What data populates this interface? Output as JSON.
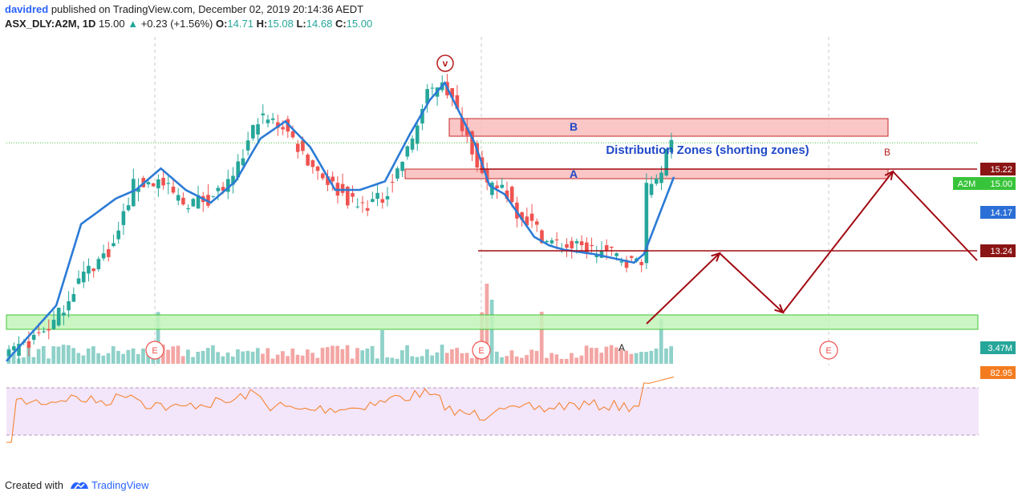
{
  "header": {
    "author": "davidred",
    "published_text": "published on TradingView.com, December 02, 2019 20:14:36 AEDT",
    "symbol": "ASX_DLY:A2M, 1D",
    "last": "15.00",
    "change_arrow": "▲",
    "change": "+0.23 (+1.56%)",
    "open_label": "O:",
    "open": "14.71",
    "high_label": "H:",
    "high": "15.08",
    "low_label": "L:",
    "low": "14.68",
    "close_label": "C:",
    "close": "15.00"
  },
  "footer": {
    "created_with": "Created with",
    "brand": "TradingView"
  },
  "colors": {
    "up": "#26a69a",
    "down": "#ef5350",
    "ma": "#2c7bd6",
    "supply_fill": "#f9bcbc",
    "supply_border": "#c62828",
    "demand_fill": "#c2f5b8",
    "demand_border": "#43c43a",
    "projection": "#a10b12",
    "rsi_line": "#f47c20",
    "rsi_band": "#f3e5fa",
    "label_text": "#2962ff",
    "marker": "#b71c1c"
  },
  "chart_data": {
    "type": "candlestick",
    "symbol": "ASX_DLY:A2M",
    "interval": "1D",
    "ohlc_last": {
      "open": 14.71,
      "high": 15.08,
      "low": 14.68,
      "close": 15.0,
      "change": 0.23,
      "change_pct": 1.56
    },
    "y_range": [
      9.8,
      17.4
    ],
    "price_path": [
      [
        0,
        9.9
      ],
      [
        10,
        10.8
      ],
      [
        15,
        11.8
      ],
      [
        22,
        12.6
      ],
      [
        26,
        14.0
      ],
      [
        31,
        14.1
      ],
      [
        36,
        13.6
      ],
      [
        41,
        13.7
      ],
      [
        46,
        14.1
      ],
      [
        51,
        15.6
      ],
      [
        56,
        15.4
      ],
      [
        61,
        14.6
      ],
      [
        66,
        14.0
      ],
      [
        71,
        13.5
      ],
      [
        76,
        13.7
      ],
      [
        81,
        14.8
      ],
      [
        85,
        16.1
      ],
      [
        88,
        16.5
      ],
      [
        91,
        15.7
      ],
      [
        94,
        14.9
      ],
      [
        97,
        13.9
      ],
      [
        100,
        14.0
      ],
      [
        103,
        13.4
      ],
      [
        106,
        13.1
      ],
      [
        109,
        12.7
      ],
      [
        112,
        12.6
      ],
      [
        118,
        12.5
      ],
      [
        122,
        12.4
      ],
      [
        126,
        12.2
      ],
      [
        128,
        12.3
      ],
      [
        129,
        13.9
      ],
      [
        132,
        14.4
      ],
      [
        134,
        15.0
      ]
    ],
    "moving_average_path": [
      [
        0,
        9.9
      ],
      [
        10,
        11.2
      ],
      [
        15,
        13.1
      ],
      [
        22,
        13.7
      ],
      [
        26,
        13.9
      ],
      [
        31,
        14.4
      ],
      [
        36,
        13.9
      ],
      [
        41,
        13.6
      ],
      [
        46,
        14.1
      ],
      [
        51,
        15.1
      ],
      [
        56,
        15.5
      ],
      [
        61,
        14.9
      ],
      [
        66,
        13.9
      ],
      [
        71,
        13.9
      ],
      [
        76,
        14.1
      ],
      [
        81,
        15.2
      ],
      [
        85,
        16.0
      ],
      [
        88,
        16.4
      ],
      [
        91,
        15.7
      ],
      [
        94,
        15.0
      ],
      [
        97,
        14.0
      ],
      [
        100,
        13.8
      ],
      [
        103,
        13.3
      ],
      [
        106,
        12.8
      ],
      [
        109,
        12.6
      ],
      [
        112,
        12.5
      ],
      [
        118,
        12.4
      ],
      [
        122,
        12.3
      ],
      [
        126,
        12.2
      ],
      [
        128,
        12.4
      ],
      [
        132,
        13.6
      ],
      [
        134,
        14.2
      ]
    ],
    "price_labels": [
      {
        "value": 15.22,
        "text": "15.22",
        "kind": "level"
      },
      {
        "value": 15.0,
        "text": "15.00",
        "kind": "last",
        "tag": "A2M"
      },
      {
        "value": 14.17,
        "text": "14.17",
        "kind": "ma"
      },
      {
        "value": 13.24,
        "text": "13.24",
        "kind": "level"
      }
    ],
    "zones": [
      {
        "name": "B",
        "kind": "supply",
        "y_top": 16.05,
        "y_bottom": 15.72,
        "x_start": 90,
        "x_end": 175
      },
      {
        "name": "A",
        "kind": "supply",
        "y_top": 15.22,
        "y_bottom": 15.08,
        "x_start": 81,
        "x_end": 175
      },
      {
        "name": "",
        "kind": "demand",
        "y_top": 12.2,
        "y_bottom": 11.9,
        "x_start": 0,
        "x_end": 195
      }
    ],
    "horizontal_lines": [
      {
        "value": 15.22,
        "x_start": 96,
        "x_end": 195
      },
      {
        "value": 13.24,
        "x_start": 95,
        "x_end": 195
      }
    ],
    "annotations": {
      "title_text": "Distribution Zones (shorting zones)",
      "circle_top": "v",
      "point_a": "A",
      "point_b": "B",
      "earnings_markers": [
        "E",
        "E",
        "E"
      ]
    },
    "projection_path": [
      [
        130,
        11.95
      ],
      [
        144,
        13.24
      ],
      [
        156,
        12.05
      ],
      [
        178,
        15.22
      ],
      [
        195,
        13.24
      ]
    ],
    "volume": {
      "last_label": "3.47M"
    },
    "rsi": {
      "last": 82.95,
      "last_label": "82.95",
      "band": [
        30,
        70
      ]
    },
    "grid": "vertical dashed lines only",
    "legend": "none"
  }
}
